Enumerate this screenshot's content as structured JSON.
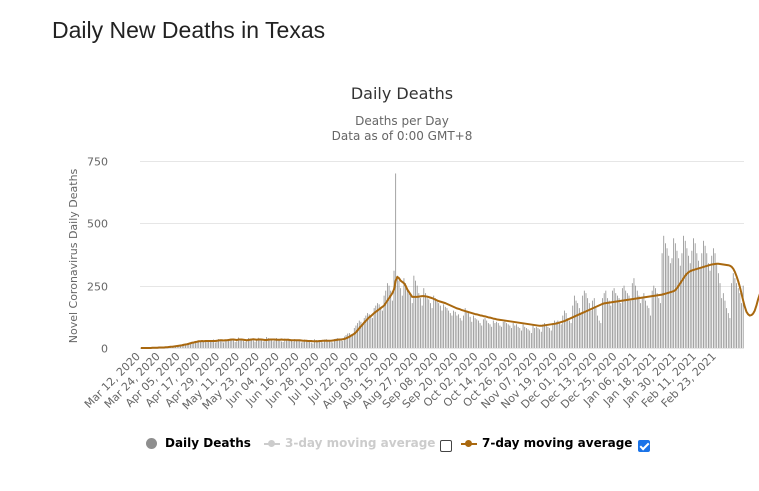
{
  "page_title": "Daily New Deaths in Texas",
  "colors": {
    "bars": "#8e8e8e",
    "ma3": "#cccccc",
    "ma7": "#a9680f",
    "grid": "#e6e6e6",
    "text": "#333333",
    "axis_text": "#666666",
    "checkbox": "#1a73e8"
  },
  "chart_data": {
    "type": "bar",
    "title": "Daily Deaths",
    "subtitle": "Deaths per Day",
    "subtitle2": "Data as of 0:00 GMT+8",
    "ylabel": "Novel Coronavirus Daily Deaths",
    "xlabel": "",
    "ylim": [
      0,
      750
    ],
    "yticks": [
      0,
      250,
      500,
      750
    ],
    "grid": true,
    "legend_position": "bottom-center",
    "x_start": "2020-03-12",
    "x_tick_interval_days": 12,
    "x_tick_labels": [
      "Mar 12, 2020",
      "Mar 24, 2020",
      "Apr 05, 2020",
      "Apr 17, 2020",
      "Apr 29, 2020",
      "May 11, 2020",
      "May 23, 2020",
      "Jun 04, 2020",
      "Jun 16, 2020",
      "Jun 28, 2020",
      "Jul 10, 2020",
      "Jul 22, 2020",
      "Aug 03, 2020",
      "Aug 15, 2020",
      "Aug 27, 2020",
      "Sep 08, 2020",
      "Sep 20, 2020",
      "Oct 02, 2020",
      "Oct 14, 2020",
      "Oct 26, 2020",
      "Nov 07, 2020",
      "Nov 19, 2020",
      "Dec 01, 2020",
      "Dec 13, 2020",
      "Dec 25, 2020",
      "Jan 06, 2021",
      "Jan 18, 2021",
      "Jan 30, 2021",
      "Feb 11, 2021",
      "Feb 23, 2021"
    ],
    "series": [
      {
        "name": "Daily Deaths",
        "kind": "bar",
        "enabled": true,
        "checkbox": false,
        "values": [
          0,
          0,
          0,
          0,
          1,
          1,
          0,
          1,
          2,
          2,
          1,
          2,
          3,
          2,
          3,
          4,
          5,
          6,
          5,
          7,
          8,
          9,
          10,
          8,
          12,
          14,
          15,
          18,
          16,
          20,
          22,
          25,
          24,
          28,
          26,
          30,
          27,
          25,
          30,
          28,
          24,
          30,
          28,
          26,
          34,
          22,
          30,
          36,
          33,
          30,
          22,
          32,
          28,
          36,
          38,
          35,
          30,
          24,
          27,
          42,
          35,
          34,
          29,
          25,
          30,
          40,
          38,
          36,
          30,
          25,
          34,
          41,
          39,
          32,
          26,
          28,
          44,
          40,
          36,
          30,
          27,
          35,
          40,
          36,
          34,
          26,
          24,
          38,
          33,
          38,
          32,
          28,
          25,
          36,
          32,
          30,
          28,
          22,
          24,
          34,
          30,
          28,
          30,
          22,
          18,
          35,
          32,
          30,
          28,
          24,
          22,
          34,
          36,
          31,
          29,
          24,
          22,
          36,
          38,
          40,
          35,
          30,
          28,
          46,
          52,
          58,
          60,
          55,
          50,
          80,
          90,
          100,
          110,
          105,
          98,
          120,
          130,
          140,
          135,
          128,
          120,
          160,
          170,
          180,
          175,
          165,
          150,
          210,
          230,
          260,
          250,
          230,
          190,
          310,
          700,
          290,
          270,
          240,
          210,
          280,
          260,
          240,
          230,
          210,
          180,
          290,
          270,
          250,
          220,
          200,
          170,
          240,
          220,
          200,
          195,
          180,
          160,
          210,
          200,
          190,
          180,
          170,
          150,
          175,
          165,
          160,
          150,
          140,
          130,
          150,
          145,
          130,
          135,
          120,
          110,
          130,
          160,
          150,
          140,
          125,
          105,
          130,
          120,
          115,
          110,
          100,
          90,
          115,
          120,
          110,
          100,
          95,
          85,
          110,
          100,
          105,
          100,
          90,
          85,
          105,
          110,
          100,
          95,
          90,
          80,
          100,
          90,
          95,
          85,
          80,
          70,
          95,
          85,
          80,
          75,
          70,
          60,
          90,
          80,
          85,
          80,
          75,
          65,
          95,
          100,
          90,
          85,
          80,
          70,
          100,
          110,
          105,
          110,
          100,
          95,
          130,
          150,
          140,
          120,
          110,
          100,
          170,
          210,
          190,
          180,
          160,
          140,
          210,
          230,
          220,
          200,
          180,
          150,
          190,
          200,
          160,
          130,
          110,
          100,
          200,
          220,
          230,
          200,
          190,
          170,
          230,
          240,
          220,
          210,
          200,
          180,
          240,
          250,
          230,
          220,
          210,
          190,
          260,
          280,
          250,
          230,
          210,
          180,
          200,
          220,
          190,
          170,
          160,
          130,
          230,
          250,
          240,
          220,
          200,
          180,
          380,
          450,
          420,
          400,
          370,
          340,
          360,
          440,
          420,
          390,
          360,
          330,
          380,
          450,
          430,
          400,
          370,
          340,
          390,
          440,
          420,
          380,
          350,
          320,
          380,
          430,
          410,
          380,
          340,
          310,
          370,
          400,
          380,
          340,
          300,
          260,
          200,
          220,
          190,
          160,
          140,
          120,
          260,
          300,
          280,
          260,
          240,
          220,
          180,
          250
        ]
      },
      {
        "name": "3-day moving average",
        "kind": "line",
        "enabled": false,
        "checkbox": false
      },
      {
        "name": "7-day moving average",
        "kind": "line",
        "enabled": true,
        "checkbox": true,
        "values": [
          0,
          0,
          0,
          0,
          0,
          0,
          0,
          1,
          1,
          1,
          1,
          2,
          2,
          2,
          2,
          3,
          3,
          4,
          5,
          5,
          6,
          7,
          8,
          9,
          10,
          11,
          13,
          14,
          15,
          17,
          19,
          21,
          22,
          24,
          25,
          27,
          27,
          28,
          27,
          28,
          28,
          28,
          28,
          28,
          28,
          28,
          29,
          30,
          31,
          31,
          30,
          31,
          31,
          32,
          33,
          34,
          34,
          33,
          32,
          34,
          34,
          34,
          33,
          32,
          31,
          32,
          33,
          34,
          35,
          34,
          33,
          34,
          34,
          34,
          33,
          32,
          32,
          33,
          34,
          34,
          34,
          34,
          33,
          33,
          33,
          34,
          33,
          33,
          33,
          33,
          32,
          31,
          31,
          31,
          31,
          31,
          31,
          30,
          29,
          29,
          29,
          28,
          28,
          28,
          27,
          27,
          27,
          27,
          28,
          28,
          29,
          29,
          29,
          29,
          29,
          29,
          30,
          31,
          32,
          33,
          34,
          34,
          35,
          36,
          39,
          42,
          45,
          49,
          53,
          57,
          63,
          71,
          79,
          87,
          94,
          102,
          109,
          116,
          123,
          128,
          134,
          140,
          145,
          150,
          155,
          160,
          165,
          170,
          180,
          190,
          200,
          210,
          220,
          235,
          270,
          285,
          280,
          270,
          265,
          260,
          250,
          235,
          225,
          215,
          205,
          205,
          205,
          205,
          206,
          207,
          208,
          208,
          207,
          206,
          204,
          202,
          200,
          197,
          194,
          191,
          188,
          186,
          184,
          182,
          180,
          177,
          174,
          171,
          168,
          165,
          162,
          159,
          157,
          155,
          152,
          150,
          148,
          146,
          144,
          142,
          140,
          138,
          136,
          135,
          133,
          131,
          130,
          128,
          127,
          125,
          123,
          122,
          120,
          118,
          117,
          115,
          114,
          113,
          112,
          111,
          110,
          109,
          108,
          107,
          106,
          105,
          104,
          103,
          102,
          101,
          100,
          99,
          98,
          97,
          96,
          95,
          94,
          93,
          92,
          91,
          90,
          89,
          89,
          90,
          91,
          92,
          93,
          94,
          95,
          96,
          97,
          98,
          100,
          102,
          104,
          106,
          108,
          111,
          114,
          117,
          120,
          123,
          126,
          129,
          132,
          135,
          138,
          141,
          144,
          147,
          150,
          153,
          156,
          159,
          162,
          165,
          168,
          171,
          174,
          177,
          179,
          180,
          181,
          182,
          183,
          184,
          185,
          186,
          187,
          188,
          189,
          190,
          191,
          192,
          193,
          194,
          195,
          196,
          197,
          198,
          199,
          200,
          201,
          202,
          203,
          204,
          205,
          206,
          207,
          208,
          209,
          210,
          211,
          212,
          213,
          214,
          216,
          218,
          220,
          222,
          224,
          226,
          228,
          232,
          240,
          250,
          260,
          270,
          280,
          290,
          298,
          304,
          308,
          311,
          313,
          315,
          317,
          319,
          321,
          323,
          325,
          327,
          329,
          331,
          333,
          335,
          336,
          337,
          338,
          338,
          337,
          336,
          335,
          334,
          333,
          332,
          330,
          326,
          318,
          305,
          288,
          268,
          245,
          218,
          190,
          165,
          145,
          135,
          130,
          132,
          138,
          150,
          170,
          195,
          215,
          228,
          232,
          235,
          236,
          234
        ]
      }
    ]
  }
}
